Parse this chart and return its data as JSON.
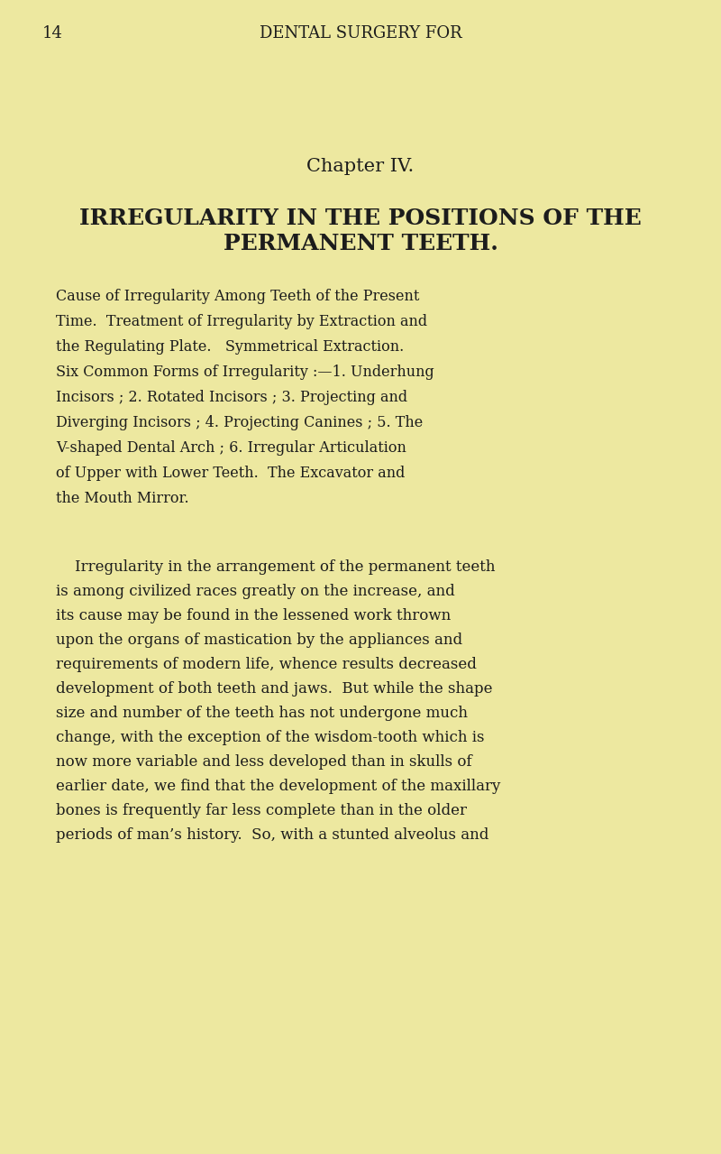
{
  "bg_color": "#ede8a0",
  "text_color": "#1c1c1c",
  "page_number": "14",
  "header": "DENTAL SURGERY FOR",
  "chapter": "Chapter IV.",
  "title_line1": "IRREGULARITY IN THE POSITIONS OF THE",
  "title_line2": "PERMANENT TEETH.",
  "summary_lines": [
    "Cause of Irregularity Among Teeth of the Present",
    "Time.  Treatment of Irregularity by Extraction and",
    "the Regulating Plate.   Symmetrical Extraction.",
    "Six Common Forms of Irregularity :—1. Underhung",
    "Incisors ; 2. Rotated Incisors ; 3. Projecting and",
    "Diverging Incisors ; 4. Projecting Canines ; 5. The",
    "V-shaped Dental Arch ; 6. Irregular Articulation",
    "of Upper with Lower Teeth.  The Excavator and",
    "the Mouth Mirror."
  ],
  "body_lines": [
    "    Irregularity in the arrangement of the permanent teeth",
    "is among civilized races greatly on the increase, and",
    "its cause may be found in the lessened work thrown",
    "upon the organs of mastication by the appliances and",
    "requirements of modern life, whence results decreased",
    "development of both teeth and jaws.  But while the shape",
    "size and number of the teeth has not undergone much",
    "change, with the exception of the wisdom-tooth which is",
    "now more variable and less developed than in skulls of",
    "earlier date, we find that the development of the maxillary",
    "bones is frequently far less complete than in the older",
    "periods of man’s history.  So, with a stunted alveolus and"
  ]
}
